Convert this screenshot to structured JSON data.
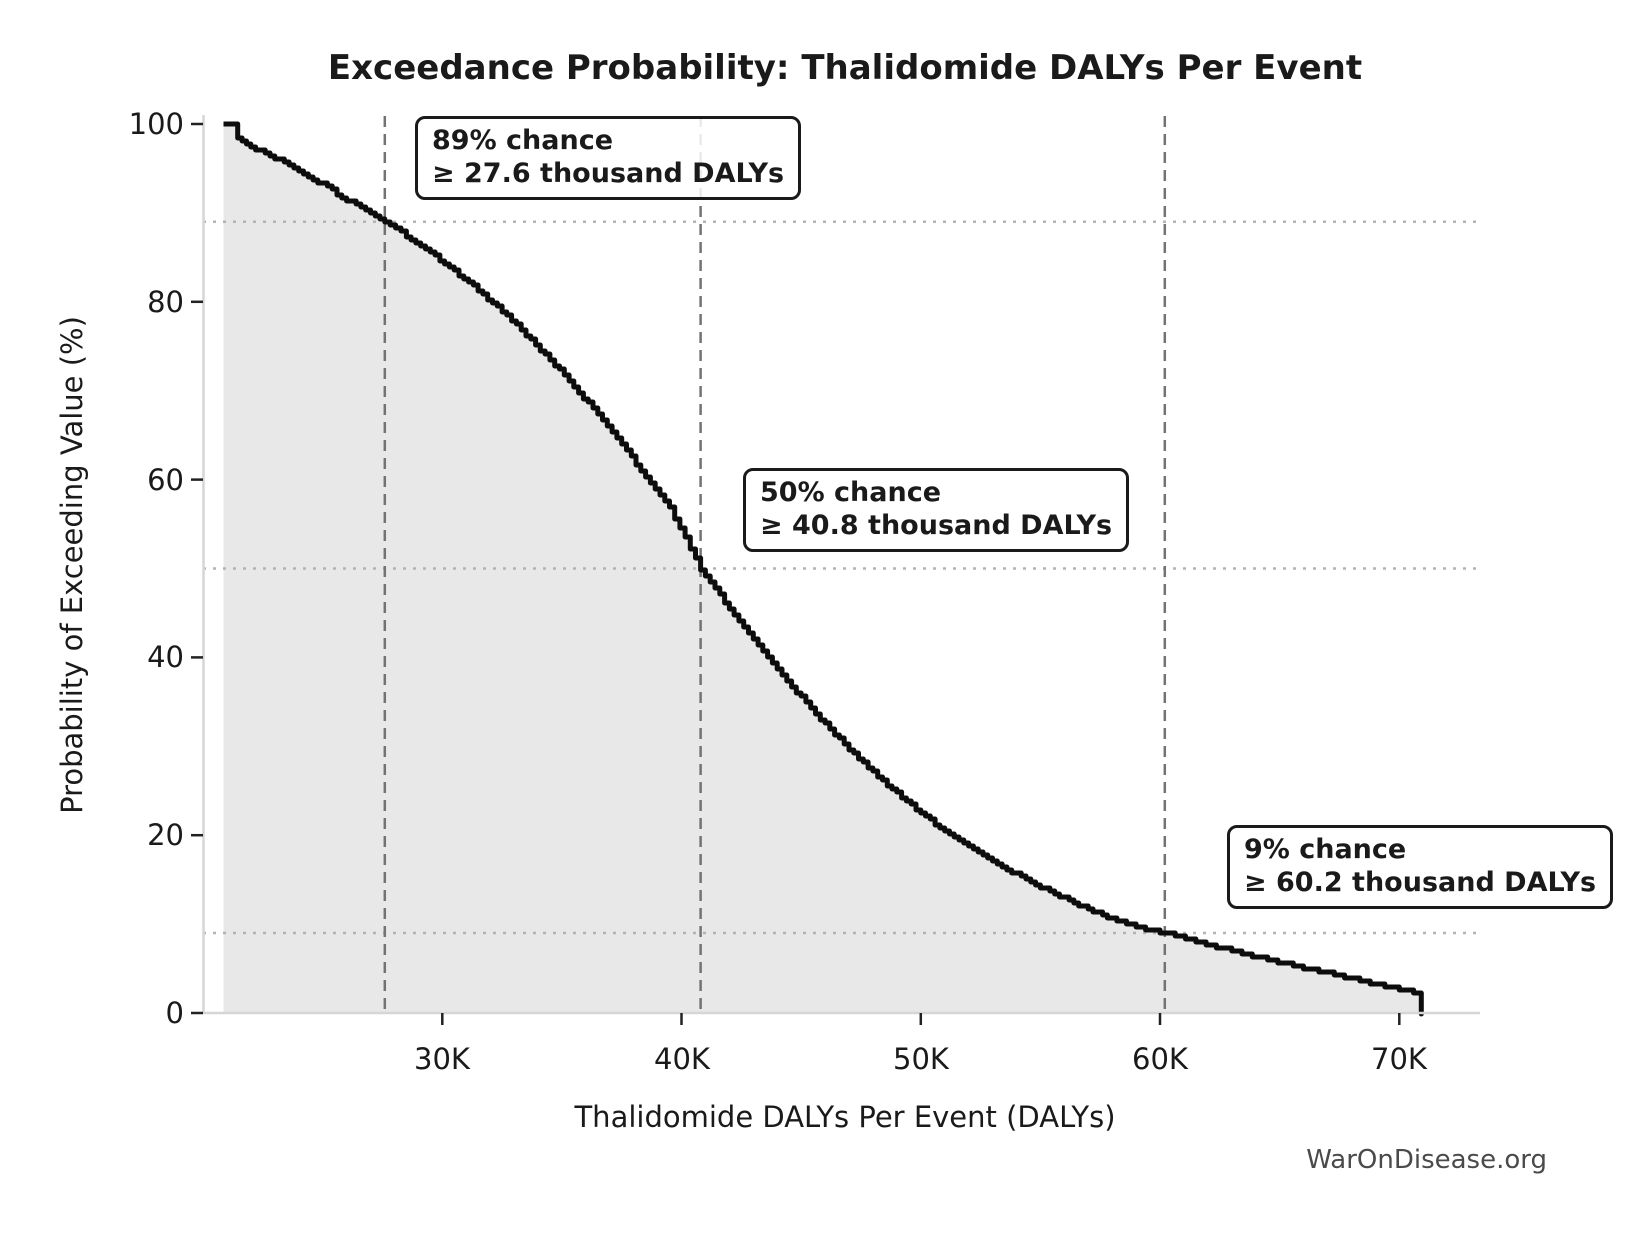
{
  "title": "Exceedance Probability: Thalidomide DALYs Per Event",
  "watermark": "WarOnDisease.org",
  "axes": {
    "x": {
      "label": "Thalidomide DALYs Per Event (DALYs)",
      "ticks": [
        {
          "value": 30000,
          "label": "30K"
        },
        {
          "value": 40000,
          "label": "40K"
        },
        {
          "value": 50000,
          "label": "50K"
        },
        {
          "value": 60000,
          "label": "60K"
        },
        {
          "value": 70000,
          "label": "70K"
        }
      ]
    },
    "y": {
      "label": "Probability of Exceeding Value (%)",
      "ticks": [
        {
          "value": 100,
          "label": "100"
        },
        {
          "value": 80,
          "label": "80"
        },
        {
          "value": 60,
          "label": "60"
        },
        {
          "value": 40,
          "label": "40"
        },
        {
          "value": 20,
          "label": "20"
        },
        {
          "value": 0,
          "label": "0"
        }
      ]
    }
  },
  "annotations": [
    {
      "line1": "89% chance",
      "line2": "≥ 27.6 thousand DALYs",
      "probability_pct": 89,
      "daly_value": 27600
    },
    {
      "line1": "50% chance",
      "line2": "≥ 40.8 thousand DALYs",
      "probability_pct": 50,
      "daly_value": 40800
    },
    {
      "line1": "9% chance",
      "line2": "≥ 60.2 thousand DALYs",
      "probability_pct": 9,
      "daly_value": 60200
    }
  ],
  "chart_data": {
    "type": "line",
    "title": "Exceedance Probability: Thalidomide DALYs Per Event",
    "xlabel": "Thalidomide DALYs Per Event (DALYs)",
    "ylabel": "Probability of Exceeding Value (%)",
    "xlim": [
      20000,
      73400
    ],
    "ylim": [
      0,
      100
    ],
    "grid": "reference lines only",
    "legend": "none",
    "series": [
      {
        "name": "exceedance-curve",
        "style": {
          "line_color": "#0d0d0d",
          "line_width": 5,
          "fill_color": "#e8e8e8",
          "jagged": true
        },
        "points": [
          [
            21150,
            100.0
          ],
          [
            21450,
            98.3
          ],
          [
            22000,
            97.5
          ],
          [
            23000,
            96.2
          ],
          [
            24000,
            94.8
          ],
          [
            25000,
            93.2
          ],
          [
            26000,
            91.5
          ],
          [
            27000,
            90.0
          ],
          [
            27600,
            89.0
          ],
          [
            28500,
            87.4
          ],
          [
            29500,
            85.5
          ],
          [
            30500,
            83.5
          ],
          [
            31500,
            81.3
          ],
          [
            32500,
            78.9
          ],
          [
            33500,
            76.3
          ],
          [
            34500,
            73.5
          ],
          [
            35500,
            70.5
          ],
          [
            36500,
            67.3
          ],
          [
            37500,
            63.9
          ],
          [
            38500,
            60.4
          ],
          [
            39500,
            56.8
          ],
          [
            40800,
            50.0
          ],
          [
            42000,
            45.5
          ],
          [
            43000,
            42.0
          ],
          [
            44000,
            38.7
          ],
          [
            45000,
            35.5
          ],
          [
            46000,
            32.5
          ],
          [
            47000,
            29.7
          ],
          [
            48000,
            27.1
          ],
          [
            49000,
            24.7
          ],
          [
            50000,
            22.5
          ],
          [
            51000,
            20.5
          ],
          [
            52000,
            18.7
          ],
          [
            53000,
            17.1
          ],
          [
            54000,
            15.6
          ],
          [
            55000,
            14.2
          ],
          [
            56000,
            12.9
          ],
          [
            57000,
            11.7
          ],
          [
            58000,
            10.6
          ],
          [
            59000,
            9.7
          ],
          [
            60200,
            9.0
          ],
          [
            61500,
            8.1
          ],
          [
            63000,
            7.0
          ],
          [
            64500,
            6.0
          ],
          [
            66000,
            5.1
          ],
          [
            67500,
            4.2
          ],
          [
            69000,
            3.3
          ],
          [
            70000,
            2.7
          ],
          [
            70600,
            2.4
          ],
          [
            70880,
            2.2
          ],
          [
            70920,
            0.0
          ]
        ]
      }
    ],
    "reference_lines": {
      "vertical_daly_values": [
        27600,
        40800,
        60200
      ],
      "vertical_style": {
        "color": "#737373",
        "dash": "dashed"
      },
      "horizontal_pct_values": [
        89,
        50,
        9
      ],
      "horizontal_style": {
        "color": "#b3b3b3",
        "dash": "dotted"
      }
    }
  }
}
